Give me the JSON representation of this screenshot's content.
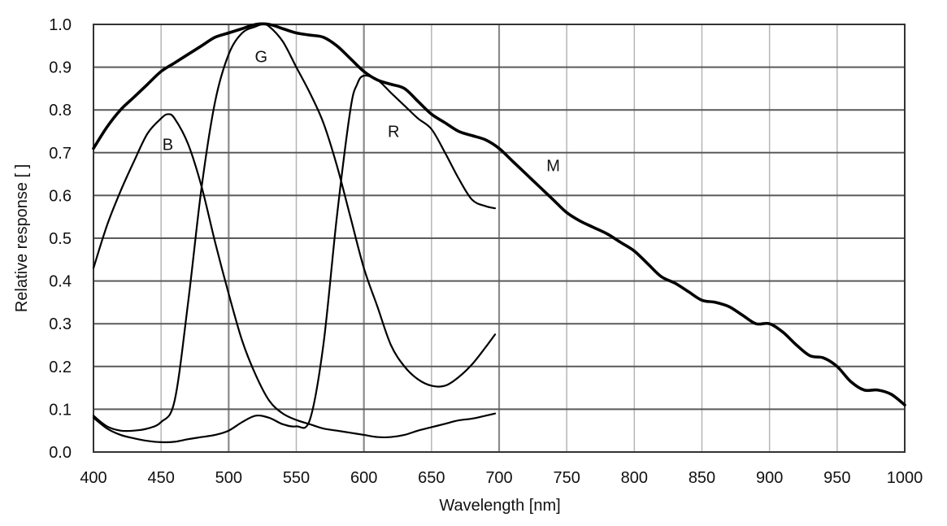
{
  "chart_data": {
    "type": "line",
    "xlabel": "Wavelength [nm]",
    "ylabel": "Relative response [ ]",
    "xlim": [
      400,
      1000
    ],
    "ylim": [
      0.0,
      1.0
    ],
    "x_ticks": [
      "400",
      "450",
      "500",
      "550",
      "600",
      "650",
      "700",
      "750",
      "800",
      "850",
      "900",
      "950",
      "1000"
    ],
    "y_ticks": [
      "0.0",
      "0.1",
      "0.2",
      "0.3",
      "0.4",
      "0.5",
      "0.6",
      "0.7",
      "0.8",
      "0.9",
      "1.0"
    ],
    "grid": true,
    "legend": "none",
    "series": [
      {
        "name": "M",
        "label_at": [
          740,
          0.67
        ],
        "stroke_width": 3.6,
        "x": [
          400,
          410,
          420,
          430,
          440,
          450,
          460,
          470,
          480,
          490,
          500,
          510,
          520,
          530,
          540,
          550,
          560,
          570,
          580,
          590,
          600,
          610,
          620,
          630,
          640,
          650,
          660,
          670,
          680,
          690,
          700,
          710,
          720,
          730,
          740,
          750,
          760,
          770,
          780,
          790,
          800,
          810,
          820,
          830,
          840,
          850,
          860,
          870,
          880,
          890,
          900,
          910,
          920,
          930,
          940,
          950,
          960,
          970,
          980,
          990,
          1000
        ],
        "y": [
          0.71,
          0.76,
          0.8,
          0.83,
          0.86,
          0.89,
          0.91,
          0.93,
          0.95,
          0.97,
          0.98,
          0.99,
          1.0,
          1.0,
          0.99,
          0.98,
          0.975,
          0.97,
          0.95,
          0.92,
          0.89,
          0.87,
          0.86,
          0.85,
          0.82,
          0.79,
          0.77,
          0.75,
          0.74,
          0.73,
          0.71,
          0.68,
          0.65,
          0.62,
          0.59,
          0.56,
          0.54,
          0.525,
          0.51,
          0.49,
          0.47,
          0.44,
          0.41,
          0.395,
          0.375,
          0.355,
          0.35,
          0.34,
          0.32,
          0.3,
          0.3,
          0.28,
          0.25,
          0.225,
          0.22,
          0.2,
          0.165,
          0.145,
          0.145,
          0.135,
          0.11
        ]
      },
      {
        "name": "B",
        "label_at": [
          455,
          0.72
        ],
        "stroke_width": 2.2,
        "x": [
          400,
          410,
          420,
          430,
          440,
          450,
          455,
          460,
          470,
          480,
          490,
          500,
          510,
          520,
          530,
          540,
          550,
          560,
          570,
          580,
          590,
          600,
          610,
          620,
          630,
          640,
          650,
          660,
          670,
          680,
          690,
          697
        ],
        "y": [
          0.43,
          0.53,
          0.61,
          0.68,
          0.745,
          0.78,
          0.79,
          0.78,
          0.72,
          0.62,
          0.49,
          0.37,
          0.26,
          0.18,
          0.12,
          0.09,
          0.075,
          0.065,
          0.055,
          0.05,
          0.045,
          0.04,
          0.035,
          0.035,
          0.04,
          0.05,
          0.058,
          0.066,
          0.074,
          0.078,
          0.085,
          0.09
        ]
      },
      {
        "name": "G",
        "label_at": [
          524,
          0.925
        ],
        "stroke_width": 2.2,
        "x": [
          400,
          410,
          420,
          430,
          440,
          450,
          460,
          470,
          480,
          490,
          500,
          510,
          520,
          525,
          530,
          540,
          550,
          560,
          570,
          580,
          590,
          600,
          610,
          620,
          630,
          640,
          650,
          660,
          670,
          680,
          690,
          697
        ],
        "y": [
          0.085,
          0.06,
          0.05,
          0.05,
          0.055,
          0.07,
          0.12,
          0.35,
          0.62,
          0.82,
          0.93,
          0.98,
          0.995,
          1.0,
          0.995,
          0.96,
          0.9,
          0.84,
          0.77,
          0.67,
          0.55,
          0.43,
          0.34,
          0.25,
          0.2,
          0.17,
          0.155,
          0.155,
          0.175,
          0.205,
          0.245,
          0.275
        ]
      },
      {
        "name": "R",
        "label_at": [
          622,
          0.75
        ],
        "stroke_width": 2.2,
        "x": [
          400,
          410,
          420,
          430,
          440,
          450,
          460,
          470,
          480,
          490,
          500,
          510,
          520,
          530,
          540,
          550,
          560,
          570,
          580,
          590,
          595,
          600,
          610,
          620,
          630,
          640,
          650,
          660,
          670,
          680,
          690,
          697
        ],
        "y": [
          0.08,
          0.055,
          0.04,
          0.032,
          0.026,
          0.023,
          0.024,
          0.03,
          0.035,
          0.04,
          0.05,
          0.07,
          0.085,
          0.08,
          0.065,
          0.06,
          0.075,
          0.25,
          0.55,
          0.8,
          0.86,
          0.88,
          0.87,
          0.84,
          0.81,
          0.78,
          0.755,
          0.7,
          0.64,
          0.59,
          0.575,
          0.57
        ]
      }
    ]
  }
}
